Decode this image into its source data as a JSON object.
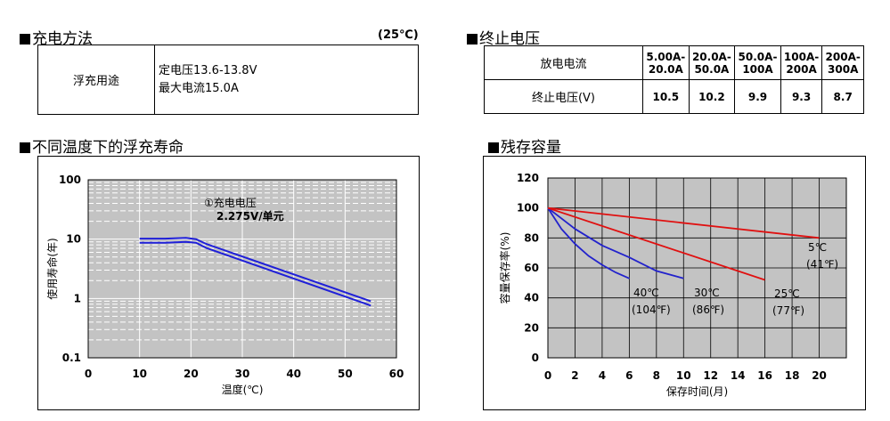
{
  "float_section": {
    "title": "充电方法",
    "temperature": "(25℃)",
    "row_label": "浮充用途",
    "line1": "定电压13.6-13.8V",
    "line2": "最大电流15.0A"
  },
  "cutoff_section": {
    "title": "终止电压",
    "row1_label": "放电电流",
    "row2_label": "终止电压(V)",
    "columns": [
      {
        "current_a": "5.00A-",
        "current_b": "20.0A",
        "voltage": "10.5"
      },
      {
        "current_a": "20.0A-",
        "current_b": "50.0A",
        "voltage": "10.2"
      },
      {
        "current_a": "50.0A-",
        "current_b": "100A",
        "voltage": "9.9"
      },
      {
        "current_a": "100A-",
        "current_b": "200A",
        "voltage": "9.3"
      },
      {
        "current_a": "200A-",
        "current_b": "300A",
        "voltage": "8.7"
      }
    ]
  },
  "life_section": {
    "title": "不同温度下的浮充寿命"
  },
  "capacity_section": {
    "title": "残存容量"
  },
  "chart_data": [
    {
      "type": "line",
      "title": "不同温度下的浮充寿命",
      "xlabel": "温度(℃)",
      "ylabel": "使用寿命(年)",
      "xlim": [
        0,
        60
      ],
      "ylim": [
        0.1,
        100
      ],
      "yscale": "log",
      "xticks": [
        0,
        10,
        20,
        30,
        40,
        50,
        60
      ],
      "yticks": [
        0.1,
        1,
        10,
        100
      ],
      "yticklabels": [
        "0.1",
        "1",
        "10",
        "100"
      ],
      "grid": true,
      "annotation_line1": "①充电电压",
      "annotation_line2": "2.275V/单元",
      "series": [
        {
          "color": "#1f1fd8",
          "x": [
            10,
            15,
            19,
            21,
            23,
            55
          ],
          "y": [
            10.2,
            10.2,
            10.5,
            10.0,
            8.3,
            0.9
          ]
        },
        {
          "color": "#1f1fd8",
          "x": [
            10,
            15,
            19,
            21,
            23,
            55
          ],
          "y": [
            8.7,
            8.7,
            9.0,
            8.7,
            7.1,
            0.76
          ]
        }
      ]
    },
    {
      "type": "line",
      "title": "残存容量",
      "xlabel": "保存时间(月)",
      "ylabel": "容量保存率(%)",
      "xlim": [
        0,
        22
      ],
      "ylim": [
        0,
        120
      ],
      "xticks": [
        0,
        2,
        4,
        6,
        8,
        10,
        12,
        14,
        16,
        18,
        20
      ],
      "yticks": [
        0,
        20,
        40,
        60,
        80,
        100,
        120
      ],
      "grid": true,
      "series": [
        {
          "label_line1": "40℃",
          "label_line2": "(104℉)",
          "color": "#2222cc",
          "x": [
            0,
            1,
            2,
            3,
            4,
            5,
            6
          ],
          "y": [
            100,
            86,
            76,
            68,
            62,
            57,
            53
          ]
        },
        {
          "label_line1": "30℃",
          "label_line2": "(86℉)",
          "color": "#2222cc",
          "x": [
            0,
            2,
            4,
            6,
            8,
            10
          ],
          "y": [
            100,
            86,
            75,
            67,
            58,
            53
          ]
        },
        {
          "label_line1": "25℃",
          "label_line2": "(77℉)",
          "color": "#e01010",
          "x": [
            0,
            16
          ],
          "y": [
            100,
            52
          ]
        },
        {
          "label_line1": "5℃",
          "label_line2": "(41℉)",
          "color": "#e01010",
          "x": [
            0,
            20
          ],
          "y": [
            100,
            80
          ]
        }
      ]
    }
  ]
}
